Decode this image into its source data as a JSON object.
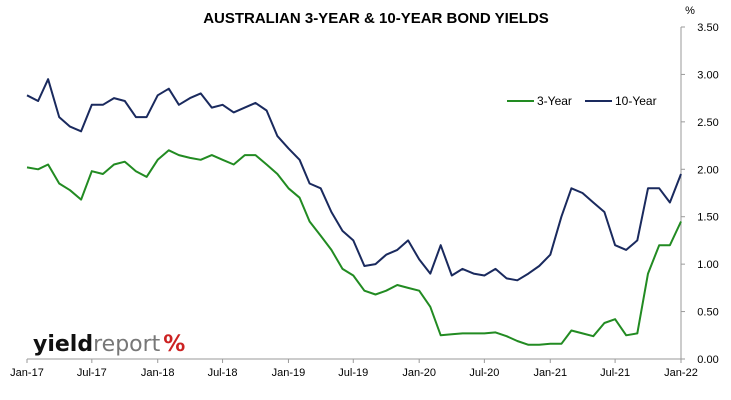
{
  "chart_data": {
    "type": "line",
    "title": "AUSTRALIAN 3-YEAR & 10-YEAR BOND YIELDS",
    "y_unit_label": "%",
    "xlabel": "",
    "ylabel": "",
    "ylim": [
      0,
      3.5
    ],
    "y_ticks": [
      "0.00",
      "0.50",
      "1.00",
      "1.50",
      "2.00",
      "2.50",
      "3.00",
      "3.50"
    ],
    "y_tick_values": [
      0,
      0.5,
      1.0,
      1.5,
      2.0,
      2.5,
      3.0,
      3.5
    ],
    "x_ticks": [
      "Jan-17",
      "Jul-17",
      "Jan-18",
      "Jul-18",
      "Jan-19",
      "Jul-19",
      "Jan-20",
      "Jul-20",
      "Jan-21",
      "Jul-21",
      "Jan-22"
    ],
    "x_tick_dates": [
      "2017-01-01",
      "2017-07-01",
      "2018-01-01",
      "2018-07-01",
      "2019-01-01",
      "2019-07-01",
      "2020-01-01",
      "2020-07-01",
      "2021-01-01",
      "2021-07-01",
      "2022-01-01"
    ],
    "x_range": [
      "2017-01-01",
      "2022-01-01"
    ],
    "grid": false,
    "legend_position": "top-right",
    "series": [
      {
        "name": "3-Year",
        "color": "#228b22",
        "points": [
          [
            "2017-01-01",
            2.02
          ],
          [
            "2017-02-01",
            2.0
          ],
          [
            "2017-03-01",
            2.05
          ],
          [
            "2017-04-01",
            1.85
          ],
          [
            "2017-05-01",
            1.78
          ],
          [
            "2017-06-01",
            1.68
          ],
          [
            "2017-07-01",
            1.98
          ],
          [
            "2017-08-01",
            1.95
          ],
          [
            "2017-09-01",
            2.05
          ],
          [
            "2017-10-01",
            2.08
          ],
          [
            "2017-11-01",
            1.98
          ],
          [
            "2017-12-01",
            1.92
          ],
          [
            "2018-01-01",
            2.1
          ],
          [
            "2018-02-01",
            2.2
          ],
          [
            "2018-03-01",
            2.15
          ],
          [
            "2018-04-01",
            2.12
          ],
          [
            "2018-05-01",
            2.1
          ],
          [
            "2018-06-01",
            2.15
          ],
          [
            "2018-07-01",
            2.1
          ],
          [
            "2018-08-01",
            2.05
          ],
          [
            "2018-09-01",
            2.15
          ],
          [
            "2018-10-01",
            2.15
          ],
          [
            "2018-11-01",
            2.05
          ],
          [
            "2018-12-01",
            1.95
          ],
          [
            "2019-01-01",
            1.8
          ],
          [
            "2019-02-01",
            1.7
          ],
          [
            "2019-03-01",
            1.45
          ],
          [
            "2019-04-01",
            1.3
          ],
          [
            "2019-05-01",
            1.15
          ],
          [
            "2019-06-01",
            0.95
          ],
          [
            "2019-07-01",
            0.88
          ],
          [
            "2019-08-01",
            0.72
          ],
          [
            "2019-09-01",
            0.68
          ],
          [
            "2019-10-01",
            0.72
          ],
          [
            "2019-11-01",
            0.78
          ],
          [
            "2019-12-01",
            0.75
          ],
          [
            "2020-01-01",
            0.72
          ],
          [
            "2020-02-01",
            0.55
          ],
          [
            "2020-03-01",
            0.25
          ],
          [
            "2020-04-01",
            0.26
          ],
          [
            "2020-05-01",
            0.27
          ],
          [
            "2020-06-01",
            0.27
          ],
          [
            "2020-07-01",
            0.27
          ],
          [
            "2020-08-01",
            0.28
          ],
          [
            "2020-09-01",
            0.24
          ],
          [
            "2020-10-01",
            0.19
          ],
          [
            "2020-11-01",
            0.15
          ],
          [
            "2020-12-01",
            0.15
          ],
          [
            "2021-01-01",
            0.16
          ],
          [
            "2021-02-01",
            0.16
          ],
          [
            "2021-03-01",
            0.3
          ],
          [
            "2021-04-01",
            0.27
          ],
          [
            "2021-05-01",
            0.24
          ],
          [
            "2021-06-01",
            0.38
          ],
          [
            "2021-07-01",
            0.42
          ],
          [
            "2021-08-01",
            0.25
          ],
          [
            "2021-09-01",
            0.27
          ],
          [
            "2021-10-01",
            0.9
          ],
          [
            "2021-11-01",
            1.2
          ],
          [
            "2021-12-01",
            1.2
          ],
          [
            "2022-01-01",
            1.45
          ]
        ]
      },
      {
        "name": "10-Year",
        "color": "#1a2a5e",
        "points": [
          [
            "2017-01-01",
            2.78
          ],
          [
            "2017-02-01",
            2.72
          ],
          [
            "2017-03-01",
            2.95
          ],
          [
            "2017-04-01",
            2.55
          ],
          [
            "2017-05-01",
            2.45
          ],
          [
            "2017-06-01",
            2.4
          ],
          [
            "2017-07-01",
            2.68
          ],
          [
            "2017-08-01",
            2.68
          ],
          [
            "2017-09-01",
            2.75
          ],
          [
            "2017-10-01",
            2.72
          ],
          [
            "2017-11-01",
            2.55
          ],
          [
            "2017-12-01",
            2.55
          ],
          [
            "2018-01-01",
            2.78
          ],
          [
            "2018-02-01",
            2.85
          ],
          [
            "2018-03-01",
            2.68
          ],
          [
            "2018-04-01",
            2.75
          ],
          [
            "2018-05-01",
            2.8
          ],
          [
            "2018-06-01",
            2.65
          ],
          [
            "2018-07-01",
            2.68
          ],
          [
            "2018-08-01",
            2.6
          ],
          [
            "2018-09-01",
            2.65
          ],
          [
            "2018-10-01",
            2.7
          ],
          [
            "2018-11-01",
            2.62
          ],
          [
            "2018-12-01",
            2.35
          ],
          [
            "2019-01-01",
            2.22
          ],
          [
            "2019-02-01",
            2.1
          ],
          [
            "2019-03-01",
            1.85
          ],
          [
            "2019-04-01",
            1.8
          ],
          [
            "2019-05-01",
            1.55
          ],
          [
            "2019-06-01",
            1.35
          ],
          [
            "2019-07-01",
            1.25
          ],
          [
            "2019-08-01",
            0.98
          ],
          [
            "2019-09-01",
            1.0
          ],
          [
            "2019-10-01",
            1.1
          ],
          [
            "2019-11-01",
            1.15
          ],
          [
            "2019-12-01",
            1.25
          ],
          [
            "2020-01-01",
            1.05
          ],
          [
            "2020-02-01",
            0.9
          ],
          [
            "2020-03-01",
            1.2
          ],
          [
            "2020-04-01",
            0.88
          ],
          [
            "2020-05-01",
            0.95
          ],
          [
            "2020-06-01",
            0.9
          ],
          [
            "2020-07-01",
            0.88
          ],
          [
            "2020-08-01",
            0.95
          ],
          [
            "2020-09-01",
            0.85
          ],
          [
            "2020-10-01",
            0.83
          ],
          [
            "2020-11-01",
            0.9
          ],
          [
            "2020-12-01",
            0.98
          ],
          [
            "2021-01-01",
            1.1
          ],
          [
            "2021-02-01",
            1.5
          ],
          [
            "2021-03-01",
            1.8
          ],
          [
            "2021-04-01",
            1.75
          ],
          [
            "2021-05-01",
            1.65
          ],
          [
            "2021-06-01",
            1.55
          ],
          [
            "2021-07-01",
            1.2
          ],
          [
            "2021-08-01",
            1.15
          ],
          [
            "2021-09-01",
            1.25
          ],
          [
            "2021-10-01",
            1.8
          ],
          [
            "2021-11-01",
            1.8
          ],
          [
            "2021-12-01",
            1.65
          ],
          [
            "2022-01-01",
            1.95
          ]
        ]
      }
    ]
  },
  "logo": {
    "part1": "yield",
    "part2": "report",
    "symbol": "%"
  }
}
